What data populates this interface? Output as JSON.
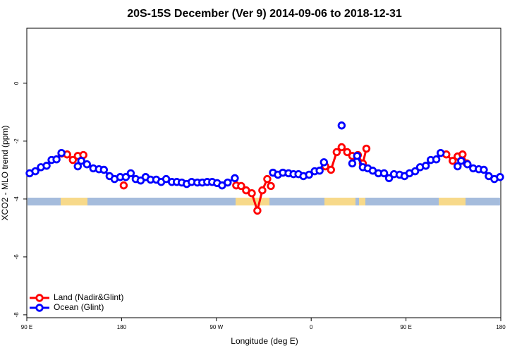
{
  "chart_data": {
    "type": "line",
    "title": "20S-15S December (Ver 9)   2014-09-06 to 2018-12-31",
    "x_label": "Longitude (deg E)",
    "y_label": "XCO2 - MLO trend (ppm)",
    "xlim": [
      90,
      540
    ],
    "xticks": [
      {
        "value": 90,
        "label": "90 E"
      },
      180,
      {
        "value": 270,
        "label": "90 W"
      },
      {
        "value": 360,
        "label": "0"
      },
      {
        "value": 450,
        "label": "90 E"
      },
      {
        "value": 540,
        "label": "180"
      }
    ],
    "ylim": [
      -8.1,
      1.9
    ],
    "yticks": [
      0,
      -2,
      -4,
      -6,
      -8
    ],
    "legend": "bottom-left",
    "series": [
      {
        "name": "Land (Nadir&Glint)",
        "color": "#ff0000",
        "x": [
          122.9,
          128.3,
          133.7,
          138.4,
          143.7,
          null,
          182.0,
          null,
          288.8,
          293.5,
          298.2,
          303.6,
          308.9,
          313.6,
          318.3,
          321.7,
          null,
          373.4,
          378.8,
          384.2,
          388.9,
          394.2,
          399.0,
          404.3,
          409.0,
          412.4,
          null,
          488.3,
          494.3,
          499.0,
          503.7,
          507.7
        ],
        "values": [
          -2.43,
          -2.46,
          -2.65,
          -2.51,
          -2.48,
          null,
          -3.53,
          null,
          -3.53,
          -3.55,
          -3.7,
          -3.8,
          -4.4,
          -3.7,
          -3.31,
          -3.55,
          null,
          -2.87,
          -2.99,
          -2.38,
          -2.21,
          -2.38,
          -2.51,
          -2.48,
          -2.77,
          -2.26,
          null,
          -2.46,
          -2.68,
          -2.53,
          -2.46,
          -2.77
        ]
      },
      {
        "name": "Ocean (Glint)",
        "color": "#0000ff",
        "x": [
          92.7,
          98.1,
          103.4,
          108.8,
          113.5,
          118.2,
          122.9,
          null,
          138.4,
          141.7,
          147.1,
          153.1,
          158.5,
          163.2,
          168.6,
          173.3,
          178.7,
          184.0,
          188.7,
          193.4,
          198.1,
          202.8,
          207.5,
          212.9,
          217.6,
          222.3,
          227.7,
          232.4,
          237.1,
          241.8,
          246.5,
          251.9,
          256.6,
          261.3,
          266.0,
          270.7,
          275.4,
          280.7,
          287.5,
          null,
          323.7,
          328.4,
          333.1,
          338.5,
          343.2,
          347.9,
          352.6,
          358.0,
          363.3,
          368.0,
          372.1,
          null,
          388.9,
          null,
          399.0,
          403.6,
          409.0,
          413.7,
          418.4,
          423.8,
          429.2,
          433.9,
          438.6,
          443.9,
          448.6,
          453.3,
          458.7,
          463.4,
          468.8,
          473.5,
          478.8,
          482.9,
          null,
          499.0,
          502.4,
          508.4,
          513.8,
          519.1,
          523.9,
          528.6,
          533.9,
          539.3
        ],
        "values": [
          -3.11,
          -3.04,
          -2.9,
          -2.85,
          -2.65,
          -2.63,
          -2.41,
          null,
          -2.87,
          -2.68,
          -2.8,
          -2.94,
          -2.97,
          -2.99,
          -3.21,
          -3.31,
          -3.24,
          -3.24,
          -3.11,
          -3.31,
          -3.36,
          -3.24,
          -3.33,
          -3.33,
          -3.41,
          -3.31,
          -3.41,
          -3.41,
          -3.43,
          -3.48,
          -3.41,
          -3.43,
          -3.43,
          -3.41,
          -3.41,
          -3.45,
          -3.53,
          -3.43,
          -3.28,
          null,
          -3.09,
          -3.16,
          -3.09,
          -3.11,
          -3.14,
          -3.14,
          -3.21,
          -3.16,
          -3.04,
          -3.02,
          -2.73,
          null,
          -1.46,
          null,
          -2.77,
          -2.51,
          -2.9,
          -2.94,
          -3.02,
          -3.11,
          -3.11,
          -3.28,
          -3.14,
          -3.16,
          -3.21,
          -3.11,
          -3.04,
          -2.9,
          -2.85,
          -2.65,
          -2.63,
          -2.41,
          null,
          -2.87,
          -2.68,
          -2.8,
          -2.94,
          -2.97,
          -2.99,
          -3.21,
          -3.31,
          -3.24
        ]
      }
    ]
  }
}
